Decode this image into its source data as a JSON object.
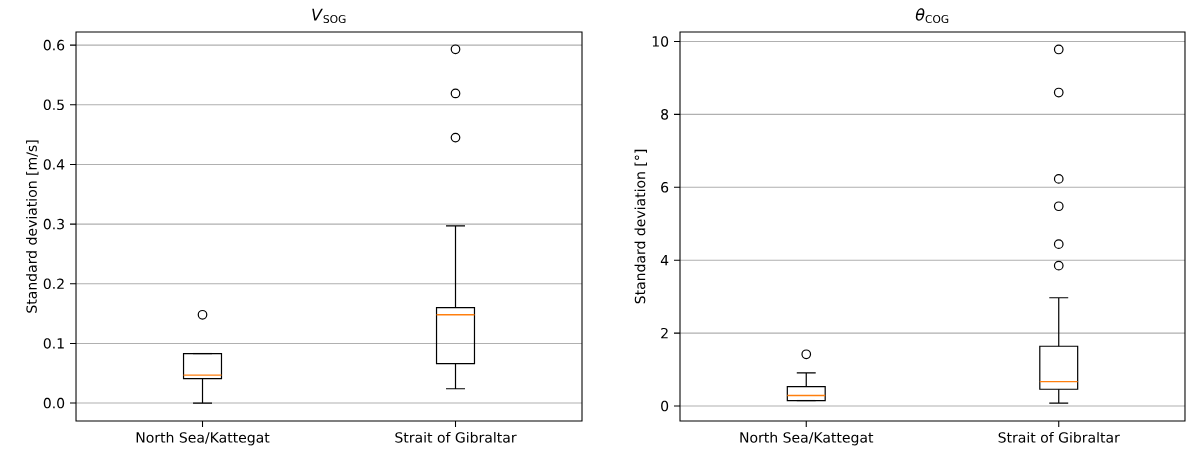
{
  "chart_data": [
    {
      "type": "box",
      "title": "*V*$_{SOG}$",
      "ylabel": "Standard deviation [m/s]",
      "categories": [
        "North Sea/Kattegat",
        "Strait of Gibraltar"
      ],
      "boxes": [
        {
          "low": 0,
          "q1": 0.041,
          "median": 0.047,
          "q3": 0.083,
          "high": 0.083,
          "outliers": [
            0.148
          ]
        },
        {
          "low": 0.024,
          "q1": 0.066,
          "median": 0.148,
          "q3": 0.16,
          "high": 0.297,
          "outliers": [
            0.445,
            0.519,
            0.593
          ]
        }
      ],
      "ylim": [
        -0.03,
        0.622
      ],
      "yticks": [
        {
          "value": 0,
          "label": "0.0"
        },
        {
          "value": 0.1,
          "label": "0.1"
        },
        {
          "value": 0.2,
          "label": "0.2"
        },
        {
          "value": 0.3,
          "label": "0.3"
        },
        {
          "value": 0.4,
          "label": "0.4"
        },
        {
          "value": 0.5,
          "label": "0.5"
        },
        {
          "value": 0.6,
          "label": "0.6"
        }
      ],
      "grid": "y",
      "marker": "circle"
    },
    {
      "type": "box",
      "title": "*θ*$_{COG}$",
      "ylabel": "Standard deviation [°]",
      "categories": [
        "North Sea/Kattegat",
        "Strait of Gibraltar"
      ],
      "boxes": [
        {
          "low": 0.15,
          "q1": 0.15,
          "median": 0.29,
          "q3": 0.53,
          "high": 0.91,
          "outliers": [
            1.42
          ]
        },
        {
          "low": 0.08,
          "q1": 0.46,
          "median": 0.67,
          "q3": 1.64,
          "high": 2.97,
          "outliers": [
            3.85,
            4.44,
            5.48,
            6.23,
            8.6,
            9.78
          ]
        }
      ],
      "ylim": [
        -0.41,
        10.26
      ],
      "yticks": [
        0,
        2,
        4,
        6,
        8,
        10
      ],
      "grid": "y",
      "marker": "circle"
    }
  ]
}
